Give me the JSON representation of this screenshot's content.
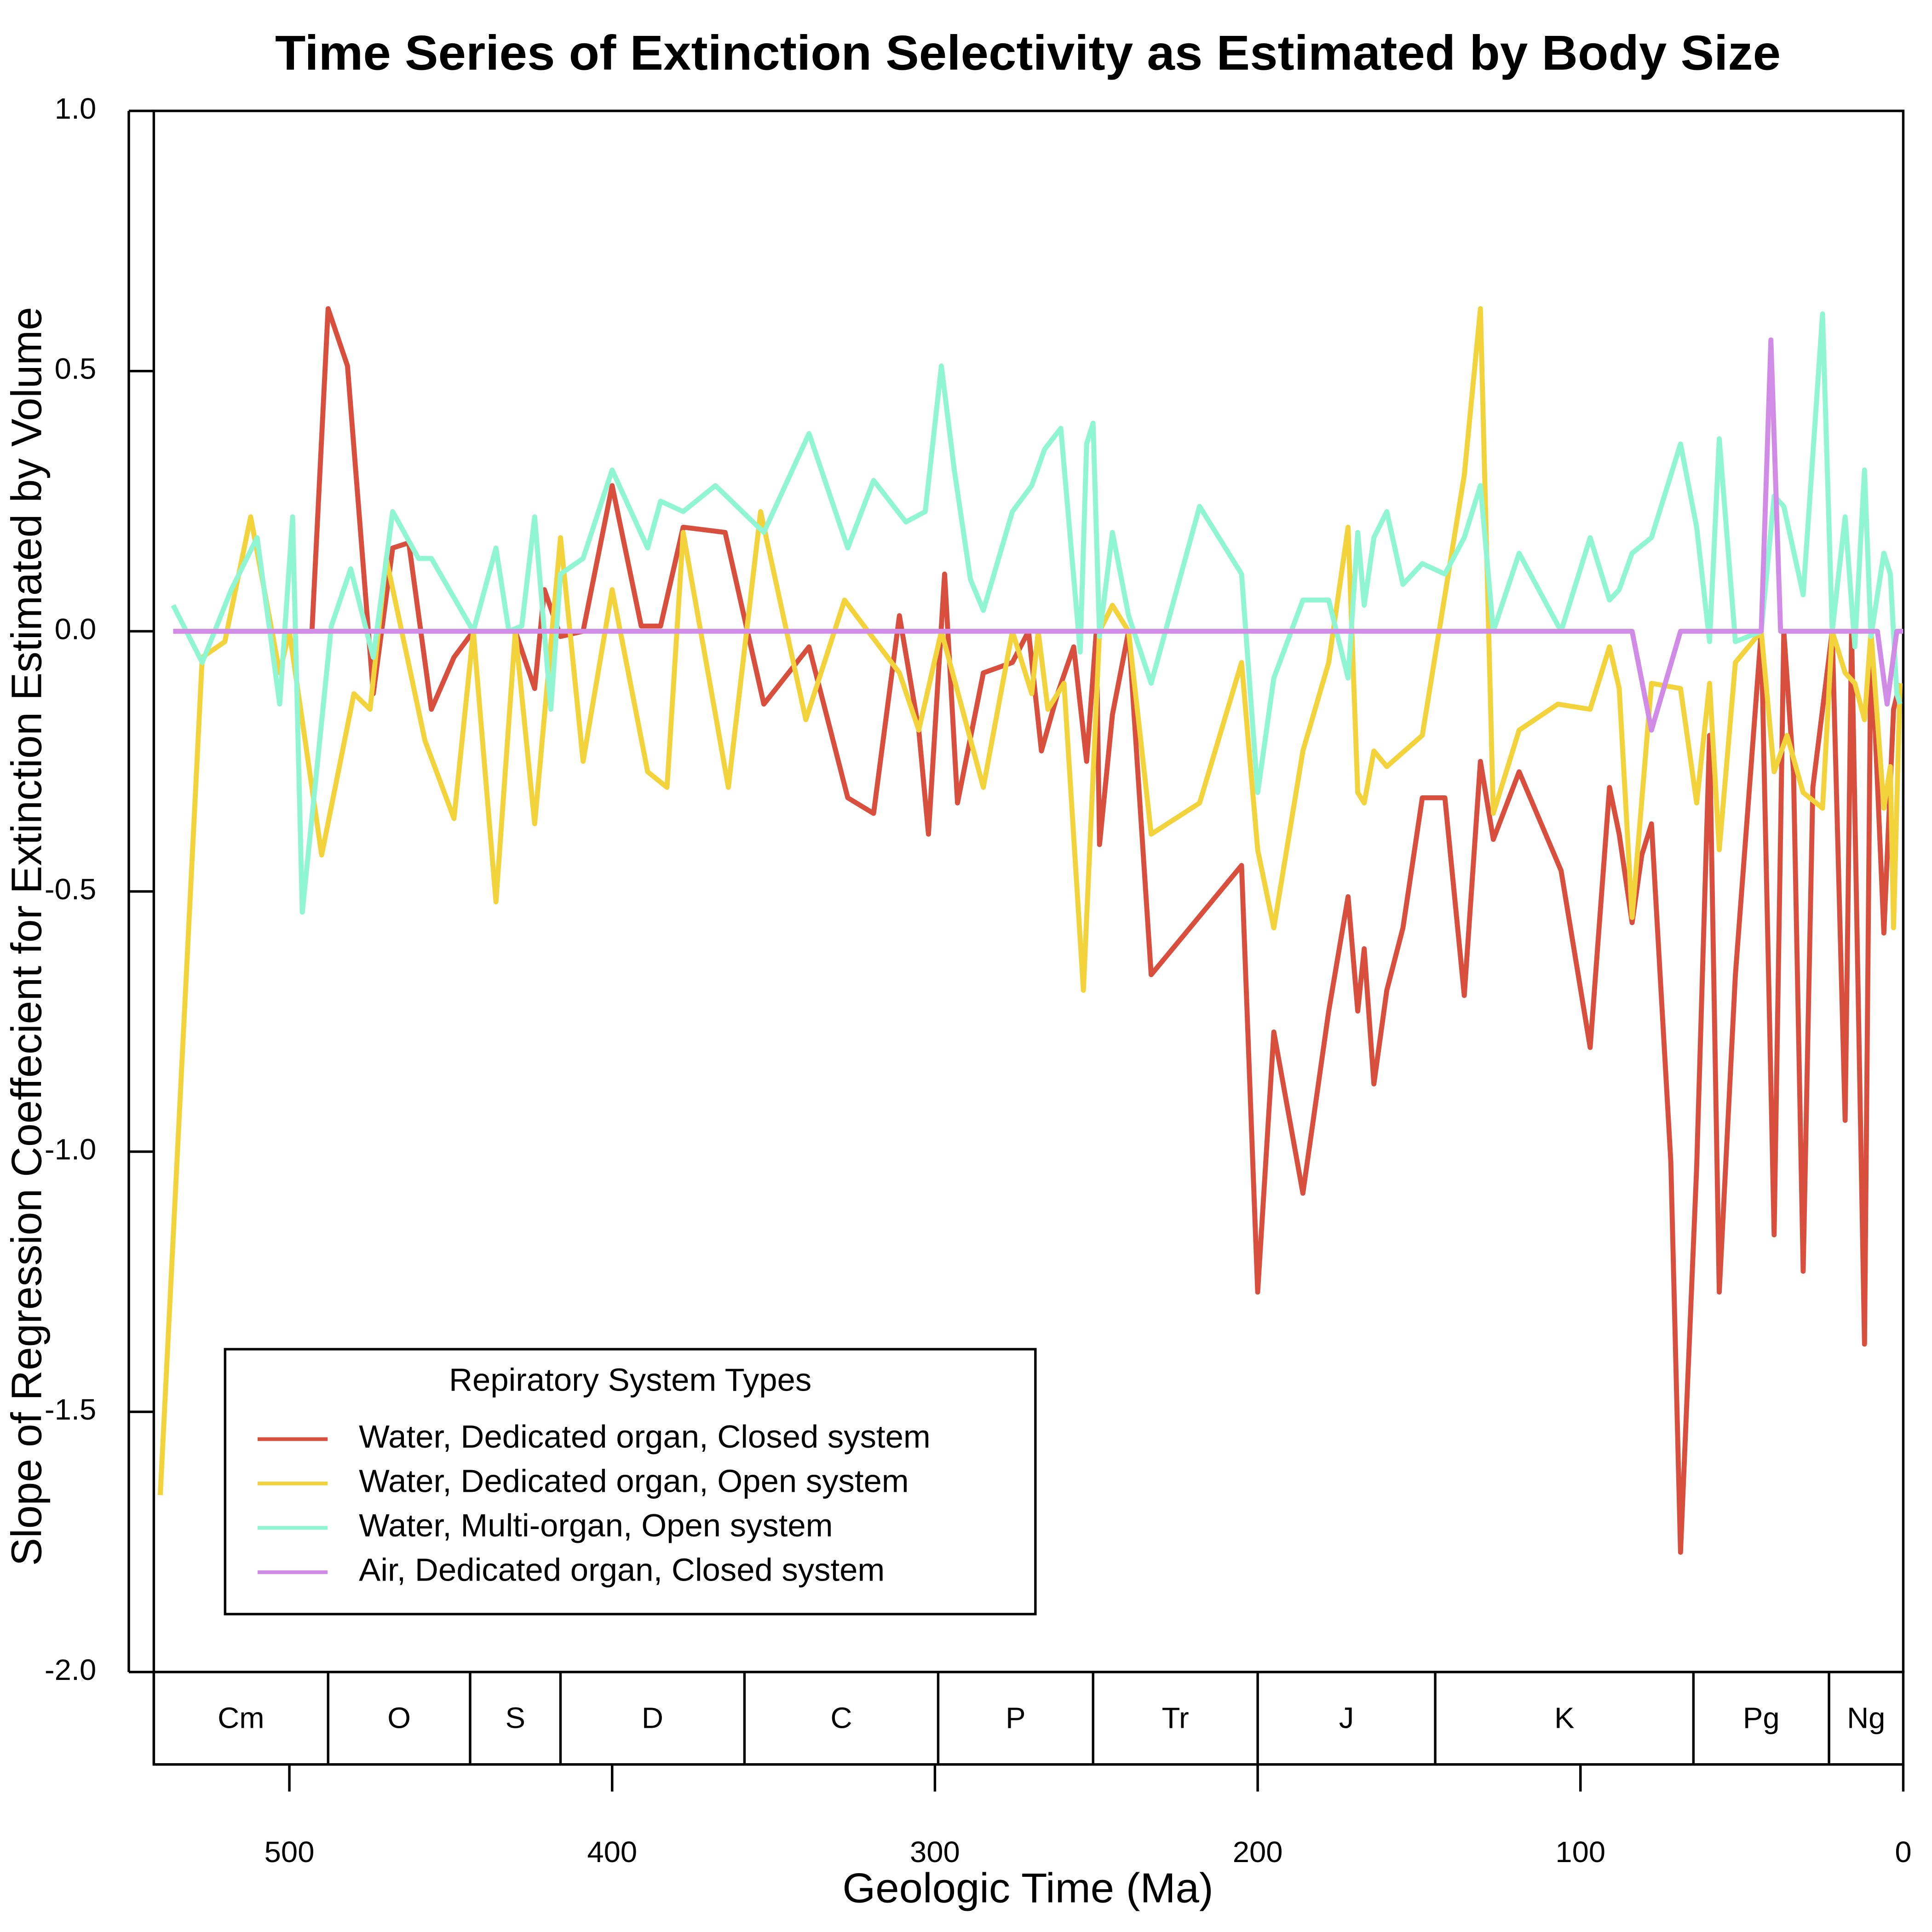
{
  "chart_data": {
    "type": "line",
    "title": "Time Series of Extinction Selectivity as Estimated by Body Size",
    "x_label": "Geologic Time (Ma)",
    "y_label": "Slope of Regression Coeffecient for Extinction Estimated by Volume",
    "xlim": [
      542,
      0
    ],
    "ylim": [
      -2.0,
      1.0
    ],
    "xticks": [
      500,
      400,
      300,
      200,
      100,
      0
    ],
    "yticks": [
      {
        "value": 1.0,
        "label": "1.0"
      },
      {
        "value": 0.5,
        "label": "0.5"
      },
      {
        "value": 0.0,
        "label": "0.0"
      },
      {
        "value": -0.5,
        "label": "-0.5"
      },
      {
        "value": -1.0,
        "label": "-1.0"
      },
      {
        "value": -1.5,
        "label": "-1.5"
      },
      {
        "value": -2.0,
        "label": "-2.0"
      }
    ],
    "periods": [
      {
        "label": "Cm",
        "start": 542,
        "end": 488
      },
      {
        "label": "O",
        "start": 488,
        "end": 444
      },
      {
        "label": "S",
        "start": 444,
        "end": 416
      },
      {
        "label": "D",
        "start": 416,
        "end": 359
      },
      {
        "label": "C",
        "start": 359,
        "end": 299
      },
      {
        "label": "P",
        "start": 299,
        "end": 251
      },
      {
        "label": "Tr",
        "start": 251,
        "end": 200
      },
      {
        "label": "J",
        "start": 200,
        "end": 145
      },
      {
        "label": "K",
        "start": 145,
        "end": 65
      },
      {
        "label": "Pg",
        "start": 65,
        "end": 23
      },
      {
        "label": "Ng",
        "start": 23,
        "end": 0
      }
    ],
    "legend_title": "Repiratory System Types",
    "legend_position": "lower left",
    "series": [
      {
        "name": "Water, Dedicated organ, Closed system",
        "color": "#d94f3d",
        "x": [
          536,
          493,
          488,
          482,
          474,
          468,
          463,
          456,
          449,
          443,
          436,
          430,
          424,
          421,
          416,
          409,
          400,
          391,
          385,
          378,
          365,
          353,
          339,
          327,
          319,
          311,
          305,
          302,
          297,
          293,
          285,
          276,
          271,
          267,
          262,
          257,
          253,
          250,
          249,
          245,
          240,
          233,
          205,
          200,
          195,
          186,
          178,
          172,
          169,
          167,
          164,
          160,
          155,
          149,
          142,
          136,
          131,
          127,
          119,
          106,
          97,
          91,
          88,
          84,
          81,
          78,
          72,
          69,
          64,
          60,
          57,
          52,
          44,
          40,
          37,
          34,
          31,
          28,
          22,
          18,
          16,
          12,
          10,
          6,
          3,
          1
        ],
        "values": [
          0,
          0,
          0.62,
          0.51,
          -0.12,
          0.16,
          0.17,
          -0.15,
          -0.05,
          0,
          0,
          0,
          -0.11,
          0.08,
          -0.01,
          0,
          0.28,
          0.01,
          0.01,
          0.2,
          0.19,
          -0.14,
          -0.03,
          -0.32,
          -0.35,
          0.03,
          -0.19,
          -0.39,
          0.11,
          -0.33,
          -0.08,
          -0.06,
          0,
          -0.23,
          -0.12,
          -0.03,
          -0.25,
          0,
          -0.41,
          -0.16,
          0,
          -0.66,
          -0.45,
          -1.27,
          -0.77,
          -1.08,
          -0.73,
          -0.51,
          -0.73,
          -0.61,
          -0.87,
          -0.69,
          -0.57,
          -0.32,
          -0.32,
          -0.7,
          -0.25,
          -0.4,
          -0.27,
          -0.46,
          -0.8,
          -0.3,
          -0.39,
          -0.56,
          -0.43,
          -0.37,
          -1.02,
          -1.77,
          -1.03,
          -0.2,
          -1.27,
          -0.66,
          0,
          -1.16,
          0,
          -0.27,
          -1.23,
          -0.3,
          0,
          -0.94,
          0,
          -1.37,
          0,
          -0.58,
          -0.15,
          -0.1
        ]
      },
      {
        "name": "Water, Dedicated organ, Open system",
        "color": "#f2d33b",
        "x": [
          540,
          527,
          520,
          512,
          503,
          500,
          490,
          480,
          475,
          470,
          458,
          449,
          443,
          436,
          430,
          424,
          416,
          409,
          400,
          389,
          383,
          378,
          364,
          354,
          340,
          328,
          311,
          305,
          298,
          285,
          276,
          270,
          268,
          265,
          260,
          254,
          249,
          245,
          240,
          233,
          218,
          205,
          200,
          195,
          186,
          178,
          172,
          169,
          167,
          164,
          160,
          149,
          136,
          131,
          127,
          119,
          107,
          97,
          91,
          88,
          84,
          78,
          69,
          64,
          60,
          57,
          52,
          44,
          40,
          36,
          31,
          25,
          22,
          18,
          15,
          12,
          10,
          6,
          4,
          3,
          1
        ],
        "values": [
          -1.66,
          -0.05,
          -0.02,
          0.22,
          -0.08,
          0,
          -0.43,
          -0.12,
          -0.15,
          0.14,
          -0.21,
          -0.36,
          0,
          -0.52,
          0,
          -0.37,
          0.18,
          -0.25,
          0.08,
          -0.27,
          -0.3,
          0.19,
          -0.3,
          0.23,
          -0.17,
          0.06,
          -0.08,
          -0.19,
          0,
          -0.3,
          0,
          -0.12,
          0,
          -0.15,
          -0.1,
          -0.69,
          0,
          0.05,
          0,
          -0.39,
          -0.33,
          -0.06,
          -0.42,
          -0.57,
          -0.23,
          -0.06,
          0.2,
          -0.31,
          -0.33,
          -0.23,
          -0.26,
          -0.2,
          0.3,
          0.62,
          -0.35,
          -0.19,
          -0.14,
          -0.15,
          -0.03,
          -0.11,
          -0.55,
          -0.1,
          -0.11,
          -0.33,
          -0.1,
          -0.42,
          -0.06,
          0,
          -0.27,
          -0.2,
          -0.31,
          -0.34,
          0,
          -0.08,
          -0.1,
          -0.17,
          0,
          -0.34,
          -0.26,
          -0.57,
          -0.1
        ]
      },
      {
        "name": "Water, Multi-organ, Open system",
        "color": "#90f5d2",
        "x": [
          536,
          527,
          518,
          510,
          503,
          499,
          496,
          487,
          481,
          474,
          468,
          460,
          456,
          443,
          436,
          432,
          428,
          424,
          419,
          416,
          409,
          400,
          389,
          385,
          378,
          368,
          353,
          339,
          327,
          319,
          309,
          303,
          298,
          294,
          289,
          285,
          276,
          270,
          266,
          261,
          255,
          253,
          251,
          249,
          245,
          240,
          233,
          218,
          205,
          200,
          195,
          186,
          178,
          172,
          169,
          167,
          164,
          160,
          155,
          149,
          142,
          136,
          131,
          127,
          119,
          106,
          97,
          91,
          88,
          84,
          78,
          69,
          64,
          60,
          57,
          52,
          44,
          40,
          37,
          31,
          25,
          22,
          18,
          15,
          12,
          10,
          6,
          4,
          2,
          1
        ],
        "values": [
          0.05,
          -0.06,
          0.08,
          0.18,
          -0.14,
          0.22,
          -0.54,
          0.01,
          0.12,
          -0.05,
          0.23,
          0.14,
          0.14,
          0,
          0.16,
          0,
          0.01,
          0.22,
          -0.15,
          0.11,
          0.14,
          0.31,
          0.16,
          0.25,
          0.23,
          0.28,
          0.19,
          0.38,
          0.16,
          0.29,
          0.21,
          0.23,
          0.51,
          0.31,
          0.1,
          0.04,
          0.23,
          0.28,
          0.35,
          0.39,
          -0.04,
          0.36,
          0.4,
          -0.01,
          0.19,
          0.03,
          -0.1,
          0.24,
          0.11,
          -0.31,
          -0.09,
          0.06,
          0.06,
          -0.09,
          0.19,
          0.05,
          0.18,
          0.23,
          0.09,
          0.13,
          0.11,
          0.18,
          0.28,
          0,
          0.15,
          0,
          0.18,
          0.06,
          0.08,
          0.15,
          0.18,
          0.36,
          0.2,
          -0.02,
          0.37,
          -0.02,
          0,
          0.26,
          0.24,
          0.07,
          0.61,
          0,
          0.22,
          -0.03,
          0.31,
          -0.01,
          0.15,
          0.11,
          -0.12,
          -0.14
        ]
      },
      {
        "name": "Air, Dedicated organ, Closed system",
        "color": "#d08be6",
        "x": [
          536,
          84,
          78,
          69,
          44,
          41,
          38,
          8,
          5,
          2,
          0
        ],
        "values": [
          0,
          0,
          -0.19,
          0,
          0,
          0.56,
          0,
          0,
          -0.14,
          0,
          0
        ]
      }
    ]
  }
}
